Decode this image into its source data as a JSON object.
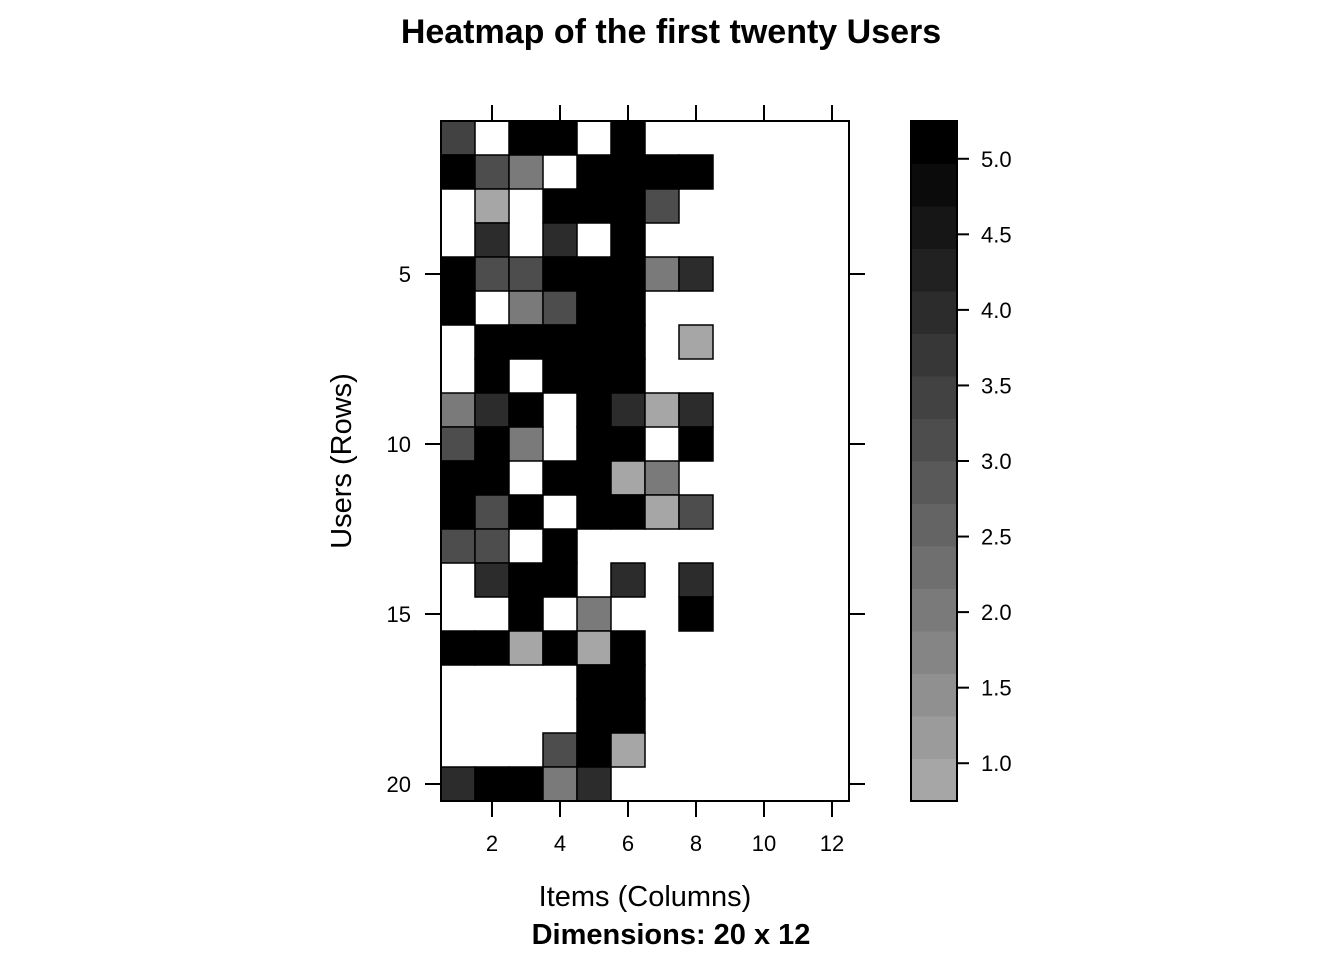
{
  "chart_data": {
    "type": "heatmap",
    "title": "Heatmap of the first twenty Users",
    "subtitle": "Dimensions: 20 x 12",
    "xlabel": "Items (Columns)",
    "ylabel": "Users (Rows)",
    "n_rows": 20,
    "n_cols": 12,
    "x_ticks": [
      2,
      4,
      6,
      8,
      10,
      12
    ],
    "y_ticks": [
      5,
      10,
      15,
      20
    ],
    "colorbar": {
      "range": [
        0.75,
        5.25
      ],
      "n_steps": 16,
      "ticks": [
        1.0,
        1.5,
        2.0,
        2.5,
        3.0,
        3.5,
        4.0,
        4.5,
        5.0
      ],
      "tick_labels": [
        "1.0",
        "1.5",
        "2.0",
        "2.5",
        "3.0",
        "3.5",
        "4.0",
        "4.5",
        "5.0"
      ],
      "color_low": "#a6a6a6",
      "color_high": "#000000"
    },
    "missing_color": "#ffffff",
    "values": [
      [
        3.5,
        null,
        5,
        5,
        null,
        5,
        null,
        null,
        null,
        null,
        null,
        null
      ],
      [
        5,
        3,
        2,
        null,
        5,
        5,
        5,
        5,
        null,
        null,
        null,
        null
      ],
      [
        null,
        1,
        null,
        5,
        5,
        5,
        3,
        null,
        null,
        null,
        null,
        null
      ],
      [
        null,
        4,
        null,
        4,
        null,
        5,
        null,
        null,
        null,
        null,
        null,
        null
      ],
      [
        5,
        3,
        3,
        5,
        5,
        5,
        2,
        4,
        null,
        null,
        null,
        null
      ],
      [
        5,
        null,
        2,
        3,
        5,
        5,
        null,
        null,
        null,
        null,
        null,
        null
      ],
      [
        null,
        5,
        5,
        5,
        5,
        5,
        null,
        1,
        null,
        null,
        null,
        null
      ],
      [
        null,
        5,
        null,
        5,
        5,
        5,
        null,
        null,
        null,
        null,
        null,
        null
      ],
      [
        2,
        4,
        5,
        null,
        5,
        4,
        1,
        4,
        null,
        null,
        null,
        null
      ],
      [
        3,
        5,
        2,
        null,
        5,
        5,
        null,
        5,
        null,
        null,
        null,
        null
      ],
      [
        5,
        5,
        null,
        5,
        5,
        1,
        2,
        null,
        null,
        null,
        null,
        null
      ],
      [
        5,
        3,
        5,
        null,
        5,
        5,
        1,
        3,
        null,
        null,
        null,
        null
      ],
      [
        3,
        3,
        null,
        5,
        null,
        null,
        null,
        null,
        null,
        null,
        null,
        null
      ],
      [
        null,
        4,
        5,
        5,
        null,
        4,
        null,
        4,
        null,
        null,
        null,
        null
      ],
      [
        null,
        null,
        5,
        null,
        2,
        null,
        null,
        5,
        null,
        null,
        null,
        null
      ],
      [
        5,
        5,
        1,
        5,
        1,
        5,
        null,
        null,
        null,
        null,
        null,
        null
      ],
      [
        null,
        null,
        null,
        null,
        5,
        5,
        null,
        null,
        null,
        null,
        null,
        null
      ],
      [
        null,
        null,
        null,
        null,
        5,
        5,
        null,
        null,
        null,
        null,
        null,
        null
      ],
      [
        null,
        null,
        null,
        3,
        5,
        1,
        null,
        null,
        null,
        null,
        null,
        null
      ],
      [
        4,
        5,
        5,
        2,
        4,
        null,
        null,
        null,
        null,
        null,
        null,
        null
      ]
    ]
  }
}
